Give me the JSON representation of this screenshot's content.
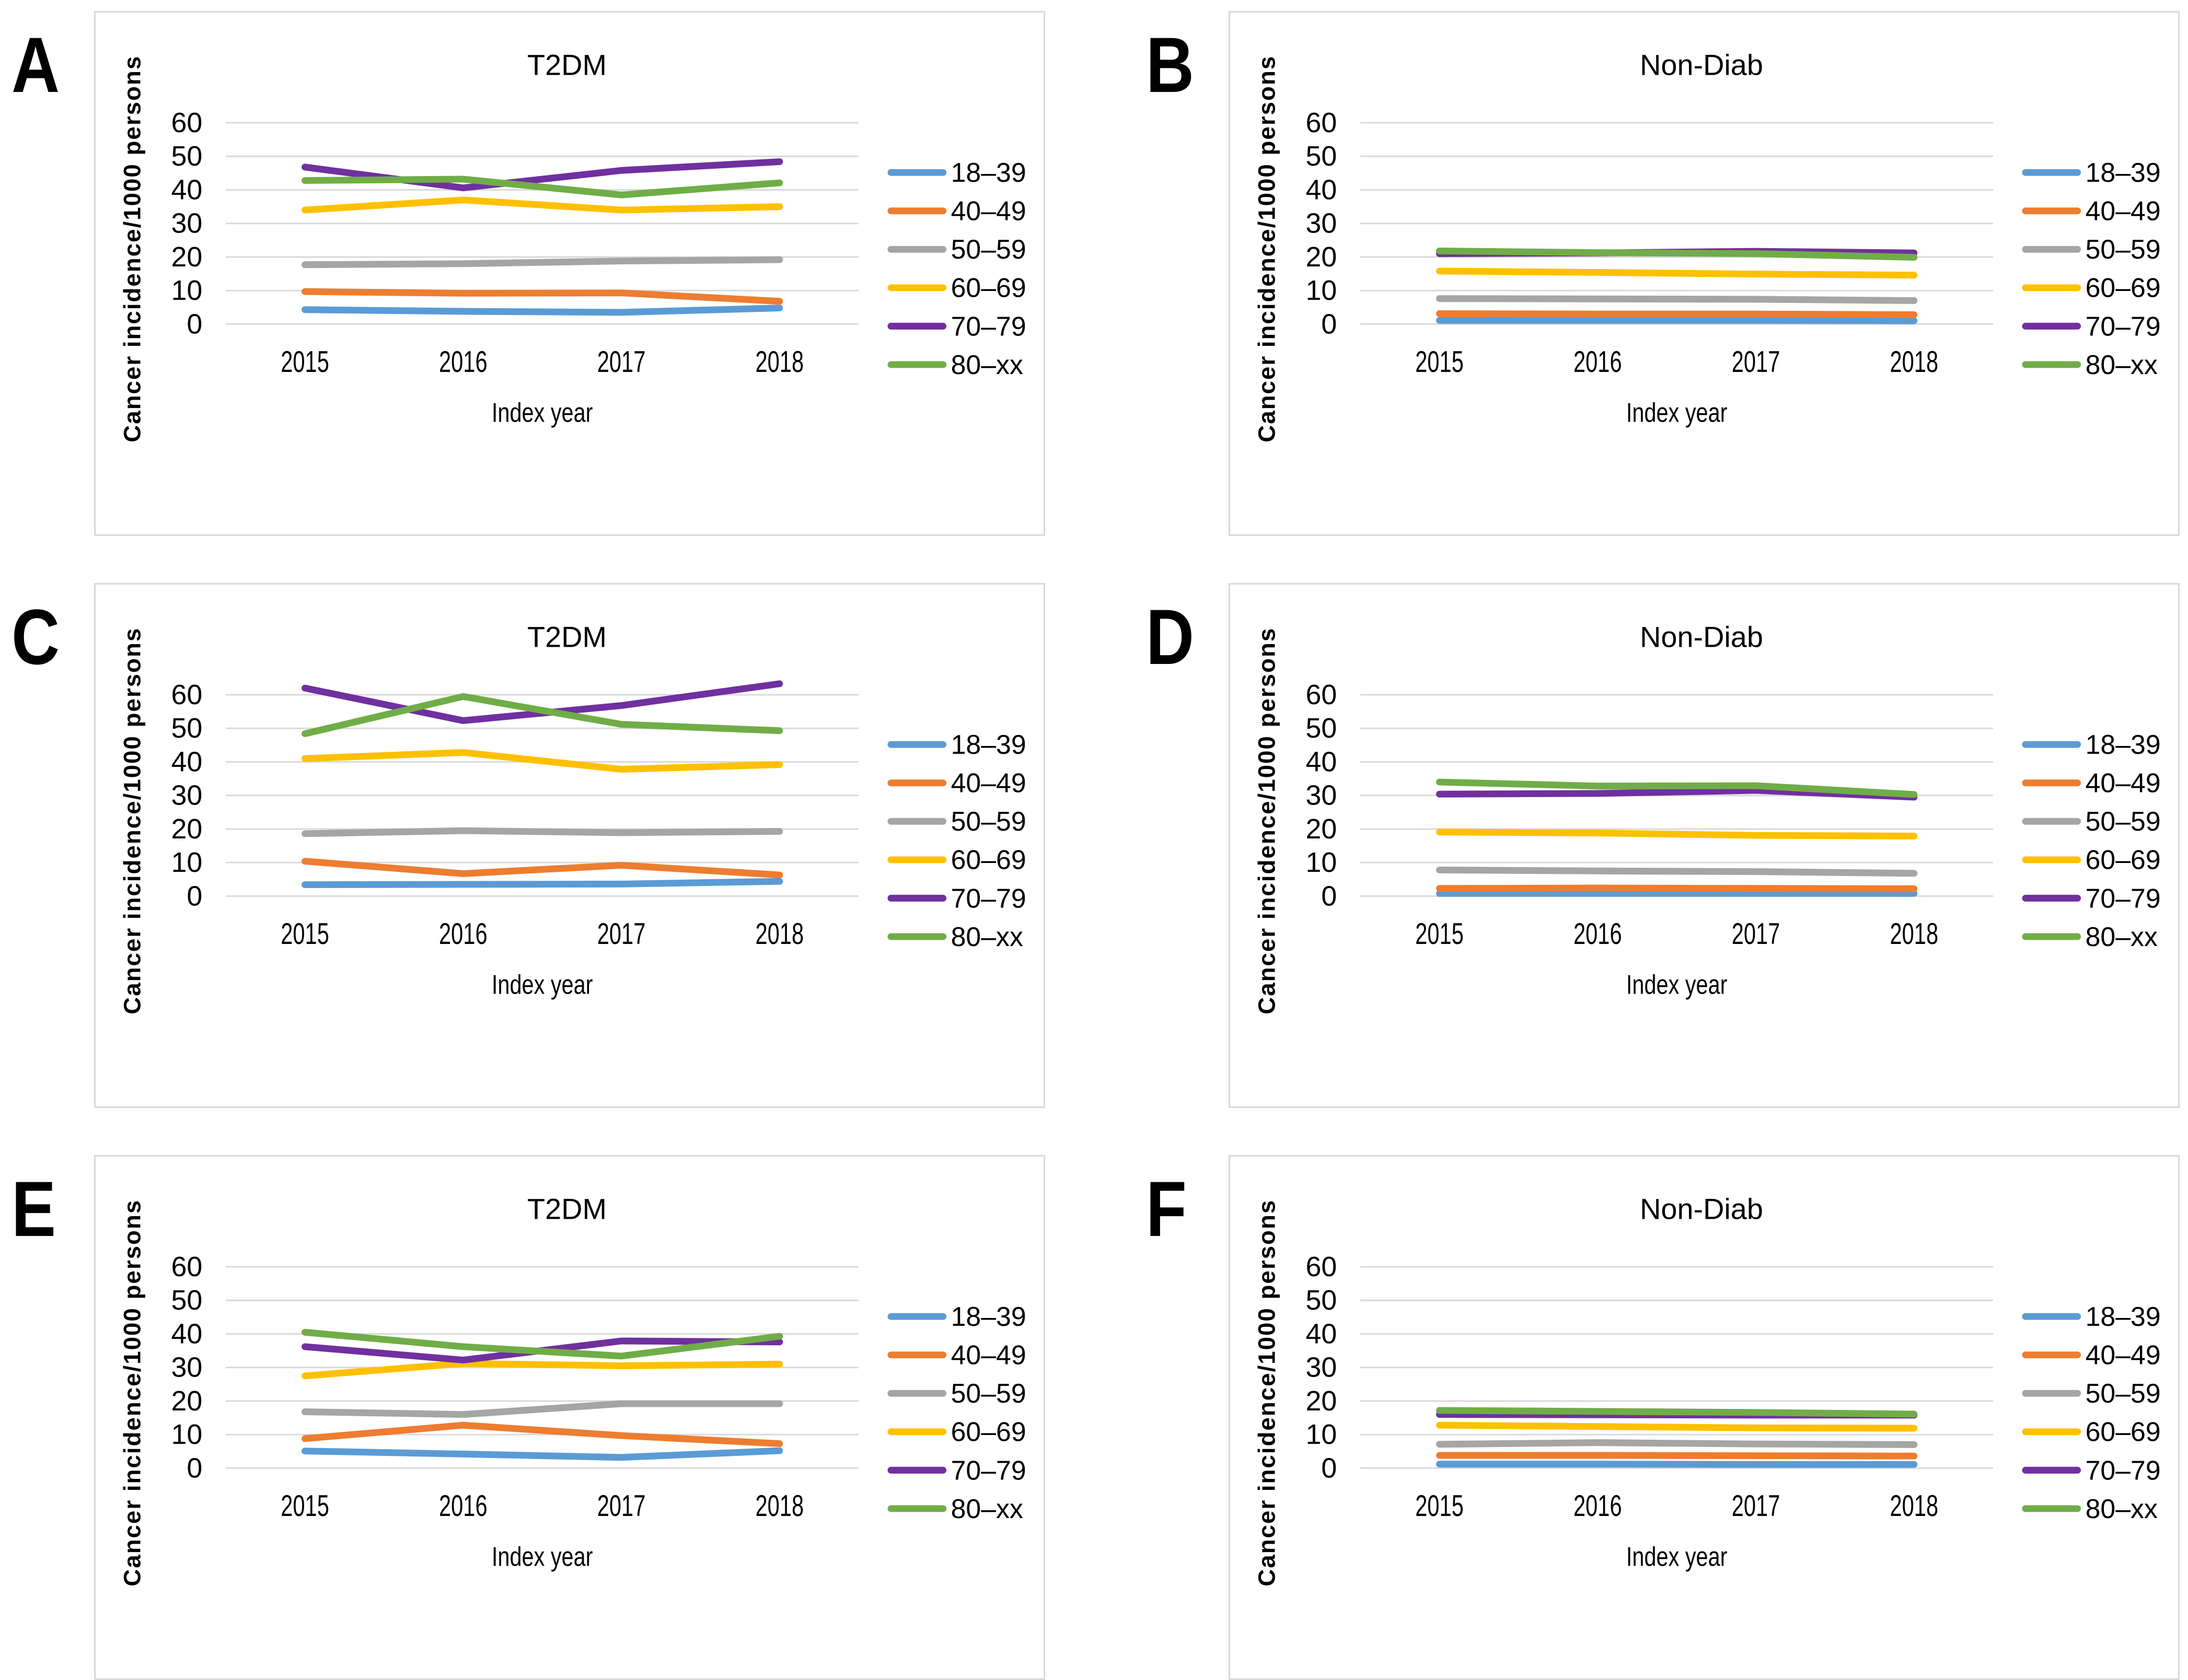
{
  "figure": {
    "background": "#ffffff",
    "panel_border_color": "#d9d9d9",
    "gridline_color": "#d9d9d9",
    "text_color": "#000000",
    "legend_labels": [
      "18–39",
      "40–49",
      "50–59",
      "60–69",
      "70–79",
      "80–xx"
    ],
    "series_colors": [
      "#5B9BD5",
      "#ED7D31",
      "#A5A5A5",
      "#FFC000",
      "#7030A0",
      "#70AD47"
    ]
  },
  "chart_data": [
    {
      "panel_label": "A",
      "type": "line",
      "title": "T2DM",
      "xlabel": "Index year",
      "ylabel": "Cancer incidence/1000 persons",
      "categories": [
        "2015",
        "2016",
        "2017",
        "2018"
      ],
      "yticks": [
        0,
        10,
        20,
        30,
        40,
        50,
        60
      ],
      "ylim": [
        0,
        65
      ],
      "grid": true,
      "legend_position": "right",
      "series": [
        {
          "name": "18–39",
          "color": "#5B9BD5",
          "values": [
            4.3,
            3.8,
            3.5,
            4.8
          ]
        },
        {
          "name": "40–49",
          "color": "#ED7D31",
          "values": [
            9.7,
            9.2,
            9.3,
            6.8
          ]
        },
        {
          "name": "50–59",
          "color": "#A5A5A5",
          "values": [
            17.7,
            18.0,
            18.8,
            19.2
          ]
        },
        {
          "name": "60–69",
          "color": "#FFC000",
          "values": [
            34.0,
            37.0,
            34.0,
            35.0
          ]
        },
        {
          "name": "70–79",
          "color": "#7030A0",
          "values": [
            46.8,
            40.6,
            45.8,
            48.4
          ]
        },
        {
          "name": "80–xx",
          "color": "#70AD47",
          "values": [
            42.8,
            43.2,
            38.5,
            42.1
          ]
        }
      ]
    },
    {
      "panel_label": "B",
      "type": "line",
      "title": "Non-Diab",
      "xlabel": "Index year",
      "ylabel": "Cancer incidence/1000 persons",
      "categories": [
        "2015",
        "2016",
        "2017",
        "2018"
      ],
      "yticks": [
        0,
        10,
        20,
        30,
        40,
        50,
        60
      ],
      "ylim": [
        0,
        65
      ],
      "grid": true,
      "legend_position": "right",
      "series": [
        {
          "name": "18–39",
          "color": "#5B9BD5",
          "values": [
            1.1,
            1.1,
            1.1,
            1.0
          ]
        },
        {
          "name": "40–49",
          "color": "#ED7D31",
          "values": [
            3.1,
            3.0,
            3.0,
            2.8
          ]
        },
        {
          "name": "50–59",
          "color": "#A5A5A5",
          "values": [
            7.6,
            7.5,
            7.4,
            7.0
          ]
        },
        {
          "name": "60–69",
          "color": "#FFC000",
          "values": [
            15.8,
            15.4,
            14.9,
            14.6
          ]
        },
        {
          "name": "70–79",
          "color": "#7030A0",
          "values": [
            21.0,
            21.2,
            21.7,
            21.2
          ]
        },
        {
          "name": "80–xx",
          "color": "#70AD47",
          "values": [
            21.8,
            21.3,
            21.0,
            19.9
          ]
        }
      ]
    },
    {
      "panel_label": "C",
      "type": "line",
      "title": "T2DM",
      "xlabel": "Index year",
      "ylabel": "Cancer incidence/1000 persons",
      "categories": [
        "2015",
        "2016",
        "2017",
        "2018"
      ],
      "yticks": [
        0,
        10,
        20,
        30,
        40,
        50,
        60
      ],
      "ylim": [
        0,
        65
      ],
      "grid": true,
      "legend_position": "right",
      "series": [
        {
          "name": "18–39",
          "color": "#5B9BD5",
          "values": [
            3.4,
            3.5,
            3.6,
            4.4
          ]
        },
        {
          "name": "40–49",
          "color": "#ED7D31",
          "values": [
            10.4,
            6.7,
            9.2,
            6.3
          ]
        },
        {
          "name": "50–59",
          "color": "#A5A5A5",
          "values": [
            18.6,
            19.5,
            18.9,
            19.3
          ]
        },
        {
          "name": "60–69",
          "color": "#FFC000",
          "values": [
            41.0,
            42.8,
            37.8,
            39.2
          ]
        },
        {
          "name": "70–79",
          "color": "#7030A0",
          "values": [
            62.0,
            52.3,
            56.8,
            63.3
          ]
        },
        {
          "name": "80–xx",
          "color": "#70AD47",
          "values": [
            48.4,
            59.5,
            51.2,
            49.3
          ]
        }
      ]
    },
    {
      "panel_label": "D",
      "type": "line",
      "title": "Non-Diab",
      "xlabel": "Index year",
      "ylabel": "Cancer incidence/1000 persons",
      "categories": [
        "2015",
        "2016",
        "2017",
        "2018"
      ],
      "yticks": [
        0,
        10,
        20,
        30,
        40,
        50,
        60
      ],
      "ylim": [
        0,
        65
      ],
      "grid": true,
      "legend_position": "right",
      "series": [
        {
          "name": "18–39",
          "color": "#5B9BD5",
          "values": [
            0.8,
            0.8,
            0.8,
            0.8
          ]
        },
        {
          "name": "40–49",
          "color": "#ED7D31",
          "values": [
            2.3,
            2.4,
            2.3,
            2.2
          ]
        },
        {
          "name": "50–59",
          "color": "#A5A5A5",
          "values": [
            7.8,
            7.5,
            7.3,
            6.8
          ]
        },
        {
          "name": "60–69",
          "color": "#FFC000",
          "values": [
            19.1,
            18.8,
            18.1,
            17.9
          ]
        },
        {
          "name": "70–79",
          "color": "#7030A0",
          "values": [
            30.4,
            30.6,
            31.5,
            29.5
          ]
        },
        {
          "name": "80–xx",
          "color": "#70AD47",
          "values": [
            34.0,
            32.8,
            32.9,
            30.3
          ]
        }
      ]
    },
    {
      "panel_label": "E",
      "type": "line",
      "title": "T2DM",
      "xlabel": "Index year",
      "ylabel": "Cancer incidence/1000 persons",
      "categories": [
        "2015",
        "2016",
        "2017",
        "2018"
      ],
      "yticks": [
        0,
        10,
        20,
        30,
        40,
        50,
        60
      ],
      "ylim": [
        0,
        65
      ],
      "grid": true,
      "legend_position": "right",
      "series": [
        {
          "name": "18–39",
          "color": "#5B9BD5",
          "values": [
            5.1,
            4.2,
            3.2,
            5.2
          ]
        },
        {
          "name": "40–49",
          "color": "#ED7D31",
          "values": [
            8.8,
            12.8,
            9.7,
            7.3
          ]
        },
        {
          "name": "50–59",
          "color": "#A5A5A5",
          "values": [
            16.8,
            16.0,
            19.2,
            19.2
          ]
        },
        {
          "name": "60–69",
          "color": "#FFC000",
          "values": [
            27.5,
            31.2,
            30.5,
            31.0
          ]
        },
        {
          "name": "70–79",
          "color": "#7030A0",
          "values": [
            36.2,
            32.2,
            37.9,
            37.6
          ]
        },
        {
          "name": "80–xx",
          "color": "#70AD47",
          "values": [
            40.5,
            36.2,
            33.4,
            39.3
          ]
        }
      ]
    },
    {
      "panel_label": "F",
      "type": "line",
      "title": "Non-Diab",
      "xlabel": "Index year",
      "ylabel": "Cancer incidence/1000 persons",
      "categories": [
        "2015",
        "2016",
        "2017",
        "2018"
      ],
      "yticks": [
        0,
        10,
        20,
        30,
        40,
        50,
        60
      ],
      "ylim": [
        0,
        65
      ],
      "grid": true,
      "legend_position": "right",
      "series": [
        {
          "name": "18–39",
          "color": "#5B9BD5",
          "values": [
            1.2,
            1.2,
            1.1,
            1.1
          ]
        },
        {
          "name": "40–49",
          "color": "#ED7D31",
          "values": [
            3.8,
            3.8,
            3.7,
            3.6
          ]
        },
        {
          "name": "50–59",
          "color": "#A5A5A5",
          "values": [
            7.1,
            7.6,
            7.2,
            7.0
          ]
        },
        {
          "name": "60–69",
          "color": "#FFC000",
          "values": [
            12.8,
            12.4,
            12.0,
            11.9
          ]
        },
        {
          "name": "70–79",
          "color": "#7030A0",
          "values": [
            16.0,
            15.9,
            15.8,
            15.8
          ]
        },
        {
          "name": "80–xx",
          "color": "#70AD47",
          "values": [
            17.2,
            16.9,
            16.6,
            16.1
          ]
        }
      ]
    }
  ]
}
